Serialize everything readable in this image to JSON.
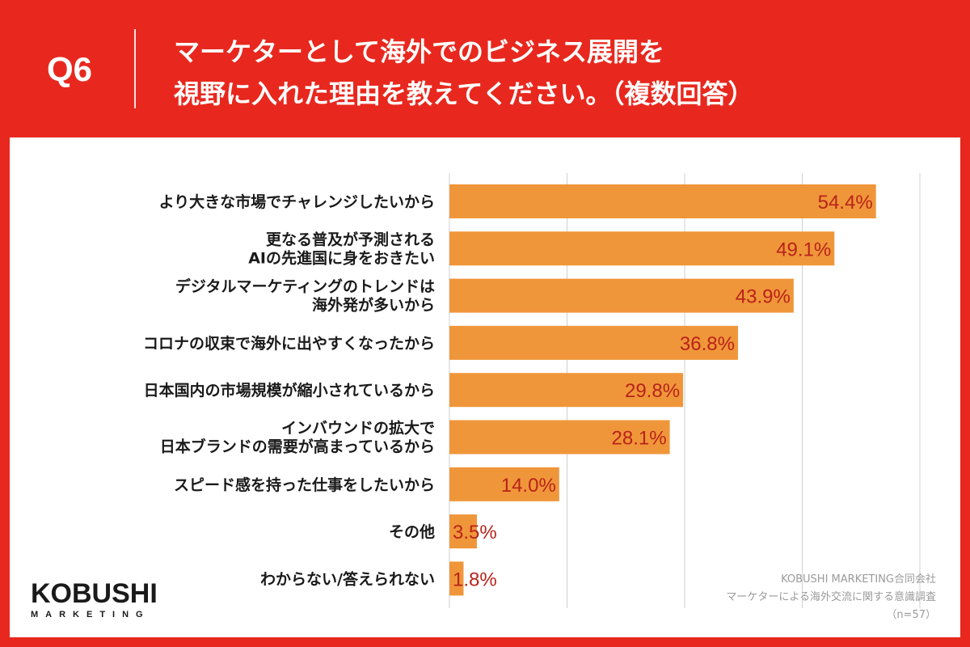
{
  "header": {
    "question_number": "Q6",
    "title_line1": "マーケターとして海外でのビジネス展開を",
    "title_line2": "視野に入れた理由を教えてください。（複数回答）"
  },
  "logo": {
    "main": "KOBUSHI",
    "sub": "MARKETING"
  },
  "source": {
    "company": "KOBUSHI MARKETING合同会社",
    "survey": "マーケターによる海外交流に関する意識調査",
    "sample": "（n=57）"
  },
  "colors": {
    "background": "#e8281e",
    "bar": "#f0963a",
    "value_text": "#b8231a",
    "grid": "#cfcfcf"
  },
  "chart_data": {
    "type": "bar",
    "orientation": "horizontal",
    "categories": [
      [
        "より大きな市場でチャレンジしたいから"
      ],
      [
        "更なる普及が予測される",
        "AIの先進国に身をおきたい"
      ],
      [
        "デジタルマーケティングのトレンドは",
        "海外発が多いから"
      ],
      [
        "コロナの収束で海外に出やすくなったから"
      ],
      [
        "日本国内の市場規模が縮小されているから"
      ],
      [
        "インバウンドの拡大で",
        "日本ブランドの需要が高まっているから"
      ],
      [
        "スピード感を持った仕事をしたいから"
      ],
      [
        "その他"
      ],
      [
        "わからない/答えられない"
      ]
    ],
    "values": [
      54.4,
      49.1,
      43.9,
      36.8,
      29.8,
      28.1,
      14.0,
      3.5,
      1.8
    ],
    "value_labels": [
      "54.4%",
      "49.1%",
      "43.9%",
      "36.8%",
      "29.8%",
      "28.1%",
      "14.0%",
      "3.5%",
      "1.8%"
    ],
    "xlim": [
      0,
      60
    ],
    "grid": true
  }
}
